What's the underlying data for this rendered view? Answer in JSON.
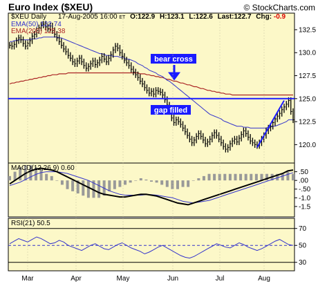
{
  "chart_data": {
    "type": "line",
    "title": "Euro Index ($XEU)",
    "watermark": "© StockCharts.com",
    "header": {
      "symbol": "$XEU Daily",
      "date": "17-Aug-2005 16:00",
      "tz": "ET",
      "open": "O:122.9",
      "high": "H:123.1",
      "low": "L:122.6",
      "last": "Last:122.7",
      "chg_label": "Chg:",
      "chg_value": "-0.9"
    },
    "colors": {
      "panel_bg": "#fcf8c8",
      "page_bg": "#ffffff",
      "ema50": "#3333cc",
      "ema200": "#aa2222",
      "price": "#000000",
      "annotation": "#1a1aff",
      "chg_neg": "#dd0000"
    },
    "x_labels": [
      "Mar",
      "Apr",
      "May",
      "Jun",
      "Jul",
      "Aug"
    ],
    "price_panel": {
      "ylim": [
        118.0,
        134.3
      ],
      "ticks": [
        "132.5",
        "130.0",
        "127.5",
        "125.0",
        "122.5",
        "120.0"
      ],
      "tick_values": [
        132.5,
        130.0,
        127.5,
        125.0,
        122.5,
        120.0
      ],
      "legend_ema50": "EMA(50) 122.74",
      "legend_ema200": "EMA(200) 125.38",
      "annotations": {
        "bear_cross": "bear cross",
        "gap_filled": "gap filled"
      },
      "horizontal_line": 125.0,
      "trendline": [
        [
          110,
          119.7
        ],
        [
          122,
          124.8
        ]
      ],
      "close": [
        130.8,
        130.7,
        130.9,
        131.3,
        131.6,
        131.4,
        131.0,
        130.7,
        131.0,
        131.3,
        131.8,
        132.0,
        132.4,
        132.7,
        133.0,
        133.1,
        132.8,
        132.6,
        132.9,
        132.4,
        132.0,
        131.6,
        131.2,
        130.8,
        130.4,
        130.1,
        129.7,
        129.4,
        129.0,
        128.8,
        129.1,
        129.4,
        129.0,
        128.6,
        128.3,
        128.5,
        128.8,
        129.1,
        128.7,
        128.9,
        129.2,
        129.6,
        129.3,
        129.0,
        129.4,
        129.8,
        130.3,
        130.7,
        130.5,
        130.0,
        129.6,
        129.2,
        128.9,
        128.6,
        128.2,
        127.9,
        127.6,
        127.3,
        126.9,
        126.6,
        126.2,
        125.9,
        125.6,
        125.8,
        125.5,
        125.9,
        125.8,
        125.7,
        125.4,
        124.9,
        124.3,
        123.6,
        122.9,
        122.4,
        122.7,
        122.5,
        122.2,
        121.8,
        121.4,
        121.0,
        120.6,
        120.2,
        120.5,
        120.9,
        121.2,
        120.9,
        120.5,
        120.1,
        120.3,
        120.6,
        121.0,
        121.3,
        121.0,
        120.6,
        120.2,
        119.8,
        119.5,
        119.7,
        120.1,
        120.4,
        120.6,
        120.3,
        120.7,
        121.1,
        121.5,
        121.2,
        120.8,
        120.4,
        120.2,
        120.0,
        119.9,
        120.2,
        120.6,
        121.0,
        121.5,
        121.8,
        122.0,
        122.4,
        122.8,
        123.1,
        123.4,
        123.8,
        124.1,
        124.4,
        124.8,
        123.6,
        122.7
      ],
      "ema50": [
        131.2,
        131.2,
        131.3,
        131.3,
        131.4,
        131.4,
        131.4,
        131.4,
        131.4,
        131.4,
        131.5,
        131.5,
        131.5,
        131.6,
        131.6,
        131.7,
        131.7,
        131.7,
        131.7,
        131.7,
        131.7,
        131.7,
        131.6,
        131.6,
        131.5,
        131.4,
        131.3,
        131.2,
        131.1,
        131.0,
        130.9,
        130.8,
        130.7,
        130.6,
        130.5,
        130.4,
        130.3,
        130.2,
        130.1,
        130.0,
        129.9,
        129.9,
        129.8,
        129.7,
        129.7,
        129.7,
        129.6,
        129.6,
        129.6,
        129.5,
        129.5,
        129.4,
        129.3,
        129.3,
        129.2,
        129.1,
        129.0,
        128.8,
        128.7,
        128.6,
        128.4,
        128.3,
        128.1,
        128.0,
        127.9,
        127.8,
        127.6,
        127.5,
        127.4,
        127.2,
        127.0,
        126.9,
        126.7,
        126.5,
        126.3,
        126.1,
        125.9,
        125.7,
        125.5,
        125.3,
        125.1,
        124.9,
        124.7,
        124.5,
        124.3,
        124.1,
        123.9,
        123.7,
        123.5,
        123.3,
        123.2,
        123.1,
        123.0,
        122.9,
        122.8,
        122.6,
        122.5,
        122.4,
        122.3,
        122.2,
        122.1,
        122.0,
        122.0,
        122.0,
        121.9,
        121.9,
        121.9,
        121.8,
        121.8,
        121.8,
        121.8,
        121.8,
        121.8,
        121.8,
        121.8,
        121.9,
        121.9,
        122.0,
        122.0,
        122.1,
        122.2,
        122.3,
        122.4,
        122.5,
        122.7,
        122.7,
        122.7
      ],
      "ema200": [
        126.6,
        126.7,
        126.7,
        126.8,
        126.8,
        126.9,
        126.9,
        127.0,
        127.0,
        127.1,
        127.1,
        127.2,
        127.2,
        127.3,
        127.3,
        127.4,
        127.4,
        127.5,
        127.5,
        127.6,
        127.6,
        127.6,
        127.7,
        127.7,
        127.7,
        127.7,
        127.8,
        127.8,
        127.8,
        127.8,
        127.8,
        127.8,
        127.8,
        127.8,
        127.8,
        127.8,
        127.8,
        127.8,
        127.8,
        127.8,
        127.8,
        127.8,
        127.8,
        127.8,
        127.8,
        127.8,
        127.8,
        127.8,
        127.8,
        127.8,
        127.8,
        127.8,
        127.8,
        127.8,
        127.8,
        127.8,
        127.8,
        127.8,
        127.7,
        127.7,
        127.7,
        127.6,
        127.6,
        127.5,
        127.5,
        127.4,
        127.4,
        127.3,
        127.3,
        127.2,
        127.1,
        127.1,
        127.0,
        126.9,
        126.9,
        126.8,
        126.7,
        126.7,
        126.6,
        126.5,
        126.5,
        126.4,
        126.3,
        126.3,
        126.2,
        126.1,
        126.1,
        126.0,
        125.9,
        125.9,
        125.8,
        125.8,
        125.7,
        125.7,
        125.6,
        125.6,
        125.5,
        125.5,
        125.5,
        125.4,
        125.4,
        125.4,
        125.4,
        125.4,
        125.4,
        125.4,
        125.4,
        125.4,
        125.4,
        125.4,
        125.4,
        125.4,
        125.4,
        125.4,
        125.4,
        125.4,
        125.4,
        125.4,
        125.4,
        125.4,
        125.4,
        125.4,
        125.4,
        125.4,
        125.4,
        125.4,
        125.4
      ]
    },
    "macd_panel": {
      "legend": "MACD(12,26,9) 0.60",
      "ylim": [
        -2.1,
        1.0
      ],
      "ticks": [
        ".50",
        ".00",
        "-.50",
        "-1.0",
        "-1.5"
      ],
      "tick_values": [
        0.5,
        0.0,
        -0.5,
        -1.0,
        -1.5
      ],
      "macd": [
        -0.2,
        0.0,
        0.2,
        0.4,
        0.55,
        0.65,
        0.7,
        0.65,
        0.6,
        0.5,
        0.35,
        0.2,
        0.05,
        -0.1,
        -0.25,
        -0.4,
        -0.55,
        -0.7,
        -0.8,
        -0.85,
        -0.9,
        -0.95,
        -0.95,
        -0.9,
        -0.85,
        -0.8,
        -0.8,
        -0.85,
        -0.9,
        -1.0,
        -1.1,
        -1.2,
        -1.3,
        -1.35,
        -1.4,
        -1.3,
        -1.2,
        -1.1,
        -1.0,
        -0.9,
        -0.8,
        -0.7,
        -0.6,
        -0.5,
        -0.4,
        -0.3,
        -0.2,
        -0.1,
        0.0,
        0.1,
        0.2,
        0.3,
        0.4,
        0.55,
        0.6
      ],
      "signal": [
        -0.3,
        -0.2,
        -0.1,
        0.05,
        0.2,
        0.35,
        0.45,
        0.5,
        0.5,
        0.5,
        0.45,
        0.4,
        0.3,
        0.2,
        0.1,
        0.0,
        -0.15,
        -0.3,
        -0.45,
        -0.6,
        -0.7,
        -0.8,
        -0.85,
        -0.85,
        -0.85,
        -0.85,
        -0.82,
        -0.82,
        -0.85,
        -0.9,
        -0.95,
        -1.0,
        -1.1,
        -1.2,
        -1.25,
        -1.3,
        -1.25,
        -1.2,
        -1.15,
        -1.05,
        -0.95,
        -0.85,
        -0.75,
        -0.65,
        -0.55,
        -0.45,
        -0.35,
        -0.25,
        -0.15,
        -0.05,
        0.05,
        0.15,
        0.25,
        0.35,
        0.45
      ]
    },
    "rsi_panel": {
      "legend": "RSI(21) 50.5",
      "ylim": [
        20,
        82
      ],
      "ticks": [
        "70",
        "50",
        "30"
      ],
      "tick_values": [
        70,
        50,
        30
      ],
      "rsi": [
        52,
        55,
        58,
        56,
        54,
        57,
        60,
        58,
        55,
        52,
        53,
        56,
        54,
        50,
        48,
        46,
        44,
        47,
        50,
        52,
        49,
        46,
        45,
        48,
        51,
        53,
        50,
        47,
        45,
        43,
        40,
        42,
        45,
        48,
        50,
        47,
        44,
        41,
        38,
        36,
        35,
        37,
        40,
        43,
        46,
        49,
        52,
        50,
        48,
        47,
        50,
        53,
        51,
        48,
        46,
        44,
        46,
        49,
        52,
        55,
        57,
        54,
        51,
        50
      ]
    }
  }
}
